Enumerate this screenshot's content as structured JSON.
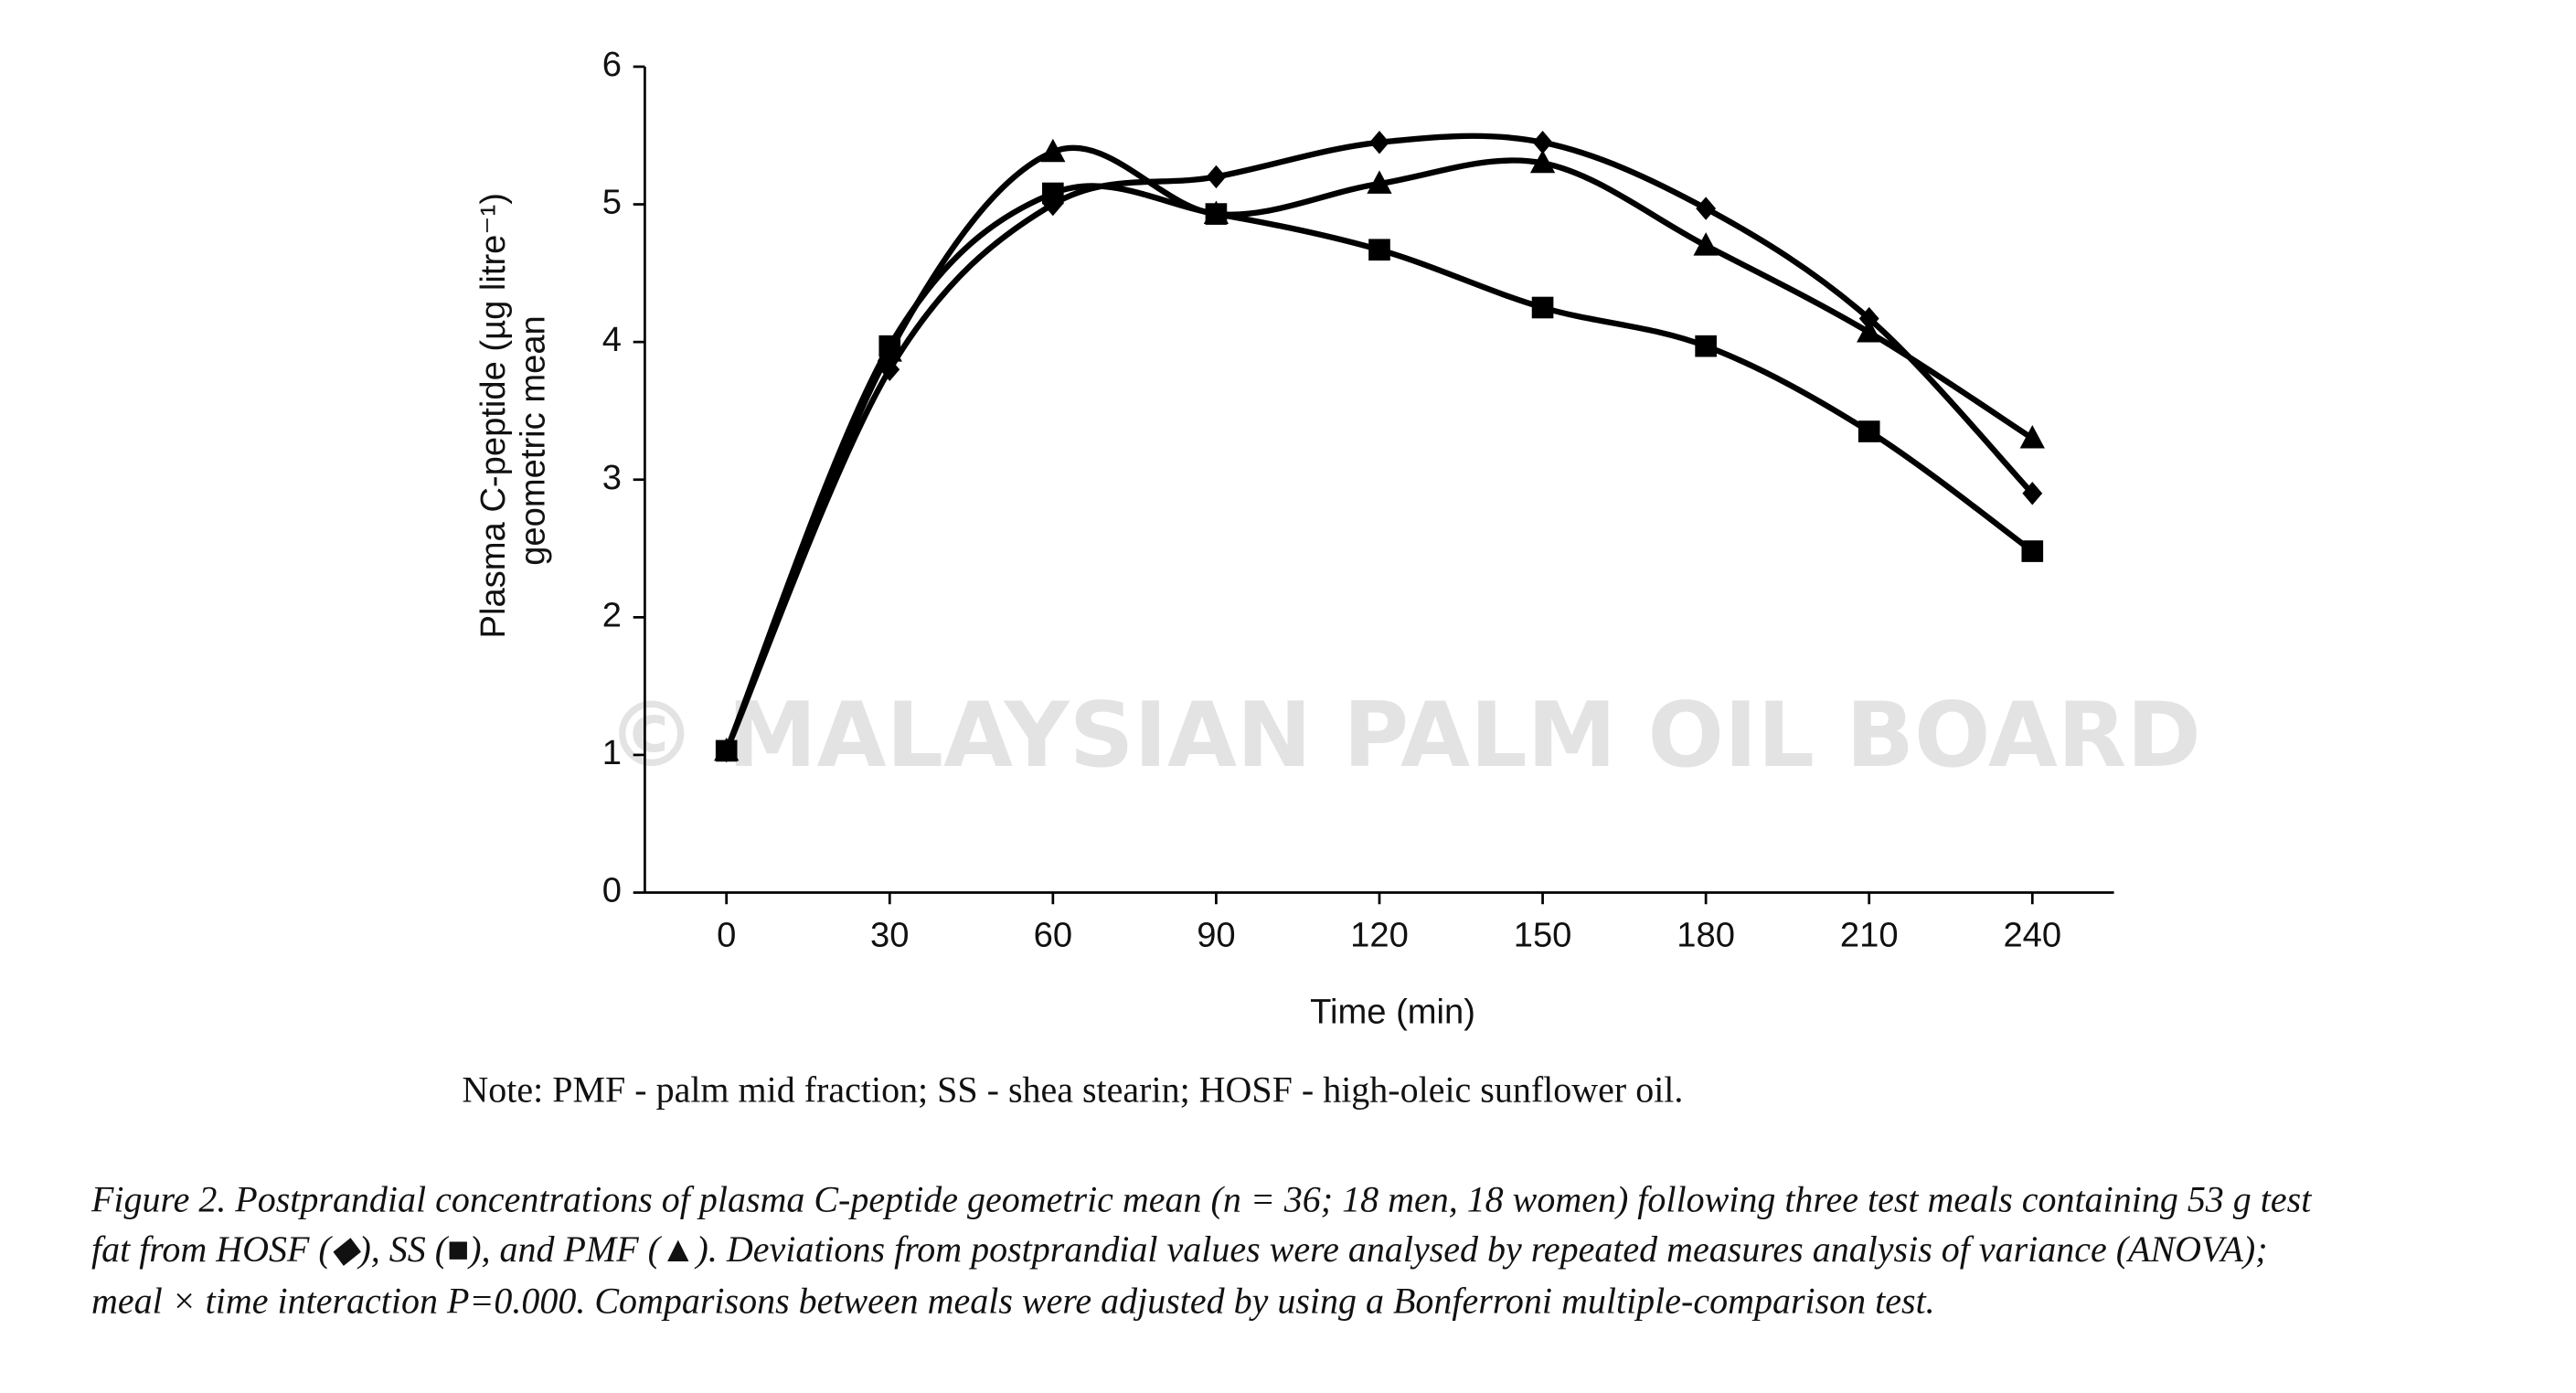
{
  "chart_data": {
    "type": "line",
    "ylabel": [
      "Plasma C-peptide (µg litre⁻¹)",
      "geometric mean"
    ],
    "xlabel": "Time (min)",
    "x": [
      0,
      30,
      60,
      90,
      120,
      150,
      180,
      210,
      240
    ],
    "xlim": [
      -15,
      255
    ],
    "xticks": [
      0,
      30,
      60,
      90,
      120,
      150,
      180,
      210,
      240
    ],
    "ylim": [
      0,
      6
    ],
    "yticks": [
      0,
      1,
      2,
      3,
      4,
      5,
      6
    ],
    "series": [
      {
        "name": "HOSF",
        "marker": "diamond",
        "color": "#000000",
        "values": [
          1.03,
          3.8,
          5.0,
          5.2,
          5.45,
          5.45,
          4.97,
          4.17,
          2.9
        ]
      },
      {
        "name": "SS",
        "marker": "square",
        "color": "#000000",
        "values": [
          1.03,
          3.97,
          5.08,
          4.93,
          4.67,
          4.25,
          3.97,
          3.35,
          2.48
        ]
      },
      {
        "name": "PMF",
        "marker": "triangle",
        "color": "#000000",
        "values": [
          1.03,
          3.93,
          5.38,
          4.93,
          5.15,
          5.3,
          4.7,
          4.07,
          3.3
        ]
      }
    ],
    "watermark": "© MALAYSIAN PALM OIL BOARD",
    "note": "Note: PMF - palm mid fraction; SS - shea stearin; HOSF - high-oleic sunflower oil.",
    "caption": [
      "Figure 2. Postprandial concentrations of plasma C-peptide geometric mean (n = 36; 18 men, 18 women) following three test meals containing 53 g test",
      "fat from HOSF (◆), SS (■), and PMF (▲). Deviations from postprandial values were analysed by repeated measures analysis of variance (ANOVA);",
      "meal × time interaction P=0.000. Comparisons between meals were adjusted by using a Bonferroni multiple-comparison test."
    ]
  }
}
